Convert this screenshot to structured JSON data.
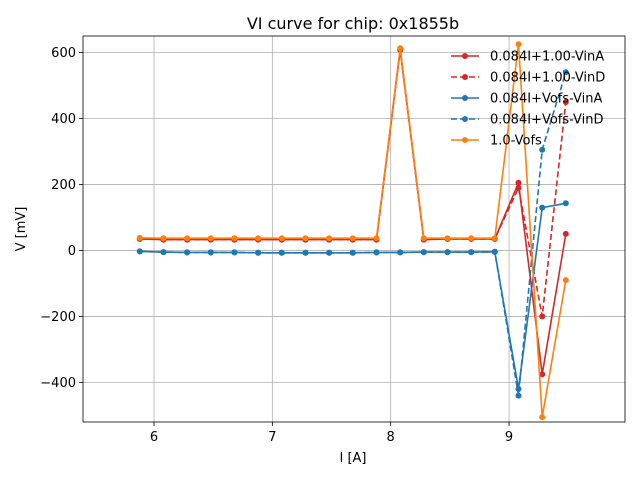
{
  "chart_data": {
    "type": "line",
    "title": "VI curve for chip: 0x1855b",
    "xlabel": "I [A]",
    "ylabel": "V [mV]",
    "xlim": [
      5.4,
      9.98
    ],
    "ylim": [
      -520,
      650
    ],
    "xticks": [
      6,
      7,
      8,
      9
    ],
    "yticks": [
      -400,
      -200,
      0,
      200,
      400,
      600
    ],
    "grid": true,
    "legend_position": "top-right",
    "x": [
      5.88,
      6.08,
      6.28,
      6.48,
      6.68,
      6.88,
      7.08,
      7.28,
      7.48,
      7.68,
      7.88,
      8.08,
      8.28,
      8.48,
      8.68,
      8.88,
      9.08,
      9.28,
      9.48
    ],
    "series": [
      {
        "name": "0.084I+1.00-VinA",
        "color": "#d62728",
        "dashed": false,
        "values": [
          35,
          33,
          33,
          33,
          33,
          33,
          33,
          33,
          33,
          33,
          33,
          608,
          33,
          35,
          35,
          35,
          205,
          -375,
          50
        ]
      },
      {
        "name": "0.084I+1.00-VinD",
        "color": "#d62728",
        "dashed": true,
        "values": [
          35,
          33,
          33,
          33,
          33,
          33,
          33,
          33,
          33,
          33,
          33,
          608,
          33,
          35,
          35,
          35,
          190,
          -200,
          450
        ]
      },
      {
        "name": "0.084I+Vofs-VinA",
        "color": "#1f77b4",
        "dashed": false,
        "values": [
          -3,
          -5,
          -6,
          -6,
          -6,
          -7,
          -7,
          -7,
          -7,
          -7,
          -6,
          -6,
          -5,
          -5,
          -5,
          -4,
          -420,
          130,
          143
        ]
      },
      {
        "name": "0.084I+Vofs-VinD",
        "color": "#1f77b4",
        "dashed": true,
        "values": [
          -3,
          -5,
          -6,
          -6,
          -6,
          -7,
          -7,
          -7,
          -7,
          -7,
          -6,
          -6,
          -5,
          -5,
          -5,
          -4,
          -440,
          305,
          540
        ]
      },
      {
        "name": "1.0-Vofs",
        "color": "#ff7f0e",
        "dashed": false,
        "values": [
          38,
          37,
          37,
          37,
          37,
          37,
          37,
          37,
          37,
          37,
          37,
          613,
          37,
          37,
          37,
          37,
          625,
          -505,
          -90
        ]
      }
    ]
  }
}
